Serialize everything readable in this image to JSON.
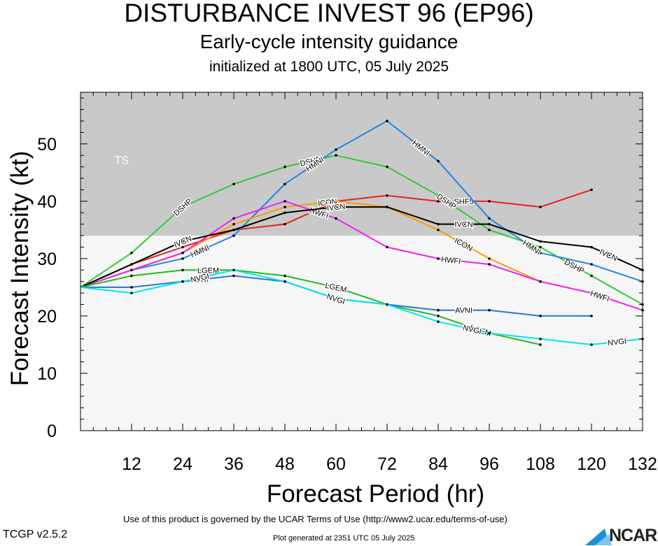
{
  "header": {
    "title": "DISTURBANCE INVEST 96 (EP96)",
    "subtitle": "Early-cycle intensity guidance",
    "init": "initialized at 1800 UTC, 05 July 2025"
  },
  "footer": {
    "terms": "Use of this product is governed by the UCAR Terms of Use (http://www2.ucar.edu/terms-of-use)",
    "generated": "Plot generated at 2351 UTC   05 July 2025",
    "version": "TCGP v2.5.2",
    "logo_text": "NCAR"
  },
  "chart_data": {
    "type": "line",
    "xlabel": "Forecast Period (hr)",
    "ylabel": "Forecast Intensity (kt)",
    "xlim": [
      0,
      132
    ],
    "ylim": [
      0,
      59
    ],
    "xticks": [
      12,
      24,
      36,
      48,
      60,
      72,
      84,
      96,
      108,
      120,
      132
    ],
    "yticks": [
      0,
      10,
      20,
      30,
      40,
      50
    ],
    "ts_threshold": 34,
    "ts_label": "TS",
    "grid": false,
    "series": [
      {
        "name": "SHF5",
        "color": "#e8221c",
        "x": [
          0,
          12,
          24,
          36,
          48,
          60,
          72,
          84,
          96,
          108,
          120
        ],
        "y": [
          25,
          29,
          32,
          35,
          36,
          40,
          41,
          40,
          40,
          39,
          42
        ],
        "labels": [
          {
            "x": 90,
            "text": "SHF5"
          }
        ]
      },
      {
        "name": "DSHP",
        "color": "#33cc33",
        "x": [
          0,
          12,
          24,
          36,
          48,
          60,
          72,
          84,
          96,
          108,
          120,
          132
        ],
        "y": [
          25,
          31,
          39,
          43,
          46,
          48,
          46,
          41,
          35,
          32,
          27,
          22
        ],
        "labels": [
          {
            "x": 24,
            "text": "DSHP"
          },
          {
            "x": 54,
            "text": "DSHP"
          },
          {
            "x": 86,
            "text": "DSHP"
          },
          {
            "x": 116,
            "text": "DSHP"
          }
        ]
      },
      {
        "name": "HMNI",
        "color": "#1e88e5",
        "x": [
          0,
          12,
          24,
          36,
          48,
          60,
          72,
          84,
          96,
          108,
          120,
          132
        ],
        "y": [
          25,
          28,
          30,
          34,
          43,
          49,
          54,
          47,
          37,
          31,
          29,
          26
        ],
        "labels": [
          {
            "x": 28,
            "text": "HMNI"
          },
          {
            "x": 55,
            "text": "HMNI"
          },
          {
            "x": 80,
            "text": "HMNI"
          },
          {
            "x": 106,
            "text": "HMNI"
          }
        ]
      },
      {
        "name": "ICON",
        "color": "#ff9900",
        "x": [
          0,
          12,
          24,
          36,
          48,
          60,
          72,
          84,
          96,
          108
        ],
        "y": [
          25,
          28,
          31,
          36,
          39,
          40,
          39,
          35,
          30,
          26
        ],
        "labels": [
          {
            "x": 58,
            "text": "ICON"
          },
          {
            "x": 90,
            "text": "ICON"
          }
        ]
      },
      {
        "name": "HWFI",
        "color": "#ee22ee",
        "x": [
          0,
          12,
          24,
          36,
          48,
          60,
          72,
          84,
          96,
          108,
          120,
          132
        ],
        "y": [
          25,
          28,
          31,
          37,
          40,
          37,
          32,
          30,
          29,
          26,
          24,
          21
        ],
        "labels": [
          {
            "x": 56,
            "text": "HWFI"
          },
          {
            "x": 87,
            "text": "HWFI"
          },
          {
            "x": 122,
            "text": "HWFI"
          }
        ]
      },
      {
        "name": "IVCN",
        "color": "#000000",
        "x": [
          0,
          12,
          24,
          36,
          48,
          60,
          72,
          84,
          96,
          108,
          120,
          132
        ],
        "y": [
          25,
          29,
          33,
          35,
          38,
          39,
          39,
          36,
          36,
          33,
          32,
          28
        ],
        "labels": [
          {
            "x": 24,
            "text": "IVCN"
          },
          {
            "x": 60,
            "text": "IVCN"
          },
          {
            "x": 90,
            "text": "IVCN"
          },
          {
            "x": 124,
            "text": "IVCN"
          }
        ]
      },
      {
        "name": "LGEM",
        "color": "#22bb22",
        "x": [
          0,
          12,
          24,
          36,
          48,
          60,
          72,
          84,
          96,
          108
        ],
        "y": [
          25,
          27,
          28,
          28,
          27,
          25,
          22,
          20,
          17,
          15
        ],
        "labels": [
          {
            "x": 30,
            "text": "LGEM"
          },
          {
            "x": 60,
            "text": "LGEM"
          },
          {
            "x": 94,
            "text": "LGEM"
          }
        ]
      },
      {
        "name": "AVNI",
        "color": "#2277dd",
        "x": [
          0,
          12,
          24,
          36,
          48,
          60,
          72,
          84,
          96,
          108,
          120
        ],
        "y": [
          25,
          25,
          26,
          27,
          26,
          23,
          22,
          21,
          21,
          20,
          20
        ],
        "labels": [
          {
            "x": 28,
            "text": "AVNI"
          },
          {
            "x": 90,
            "text": "AVNI"
          }
        ]
      },
      {
        "name": "NVGI",
        "color": "#00e5ee",
        "x": [
          0,
          12,
          24,
          36,
          48,
          60,
          72,
          84,
          96,
          108,
          120,
          132
        ],
        "y": [
          25,
          24,
          26,
          28,
          26,
          23,
          22,
          19,
          17,
          16,
          15,
          16
        ],
        "labels": [
          {
            "x": 28,
            "text": "NVGI"
          },
          {
            "x": 60,
            "text": "NVGI"
          },
          {
            "x": 92,
            "text": "NVGI"
          },
          {
            "x": 126,
            "text": "NVGI"
          }
        ]
      }
    ]
  }
}
